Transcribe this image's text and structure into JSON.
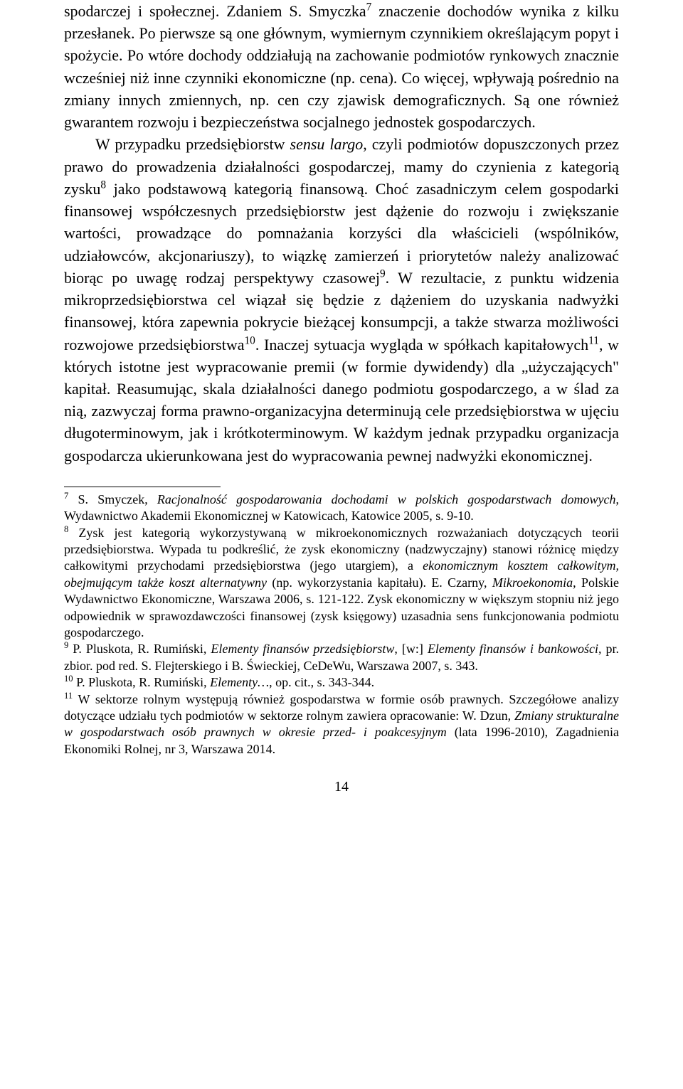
{
  "body": {
    "p1_a": "spodarczej i społecznej. Zdaniem S. Smyczka",
    "sup7": "7",
    "p1_b": " znaczenie dochodów wynika z kilku przesłanek. Po pierwsze są one głównym, wymiernym czynnikiem określającym popyt i spożycie. Po wtóre dochody oddziałują na zachowanie podmiotów rynkowych znacznie wcześniej niż inne czynniki ekonomiczne (np. cena). Co więcej, wpływają pośrednio na zmiany innych zmiennych, np. cen czy zjawisk demograficznych. Są one również gwarantem rozwoju i bezpieczeństwa socjalnego jednostek gospodarczych.",
    "p2_a": "W przypadku przedsiębiorstw ",
    "p2_italic": "sensu largo",
    "p2_b": ", czyli podmiotów dopuszczonych przez prawo do prowadzenia działalności gospodarczej, mamy do czynienia z kategorią zysku",
    "sup8": "8",
    "p2_c": " jako podstawową kategorią finansową. Choć zasadniczym celem gospodarki finansowej współczesnych przedsiębiorstw jest dążenie do rozwoju i zwiększanie wartości, prowadzące do pomnażania korzyści dla właścicieli (wspólników, udziałowców, akcjonariuszy), to wiązkę zamierzeń i priorytetów należy analizować biorąc po uwagę rodzaj perspektywy czasowej",
    "sup9": "9",
    "p2_d": ". W rezultacie, z punktu widzenia mikroprzedsiębiorstwa cel wiązał się będzie z dążeniem do uzyskania nadwyżki finansowej, która zapewnia pokrycie bieżącej konsumpcji, a także stwarza możliwości rozwojowe przedsiębiorstwa",
    "sup10": "10",
    "p2_e": ". Inaczej sytuacja wygląda w spółkach kapitałowych",
    "sup11": "11",
    "p2_f": ", w których istotne jest wypracowanie premii (w formie dywidendy) dla „użyczających\" kapitał. Reasumując, skala działalności danego podmiotu gospodarczego, a w ślad za nią, zazwyczaj forma prawno-organizacyjna determinują cele przedsiębiorstwa w ujęciu długoterminowym, jak i krótkoterminowym. W każdym jednak przypadku organizacja gospodarcza ukierunkowana jest do wypracowania pewnej nadwyżki ekonomicznej."
  },
  "footnotes": {
    "fn7_sup": "7",
    "fn7_a": " S. Smyczek, ",
    "fn7_italic": "Racjonalność gospodarowania dochodami w polskich gospodarstwach domowych",
    "fn7_b": ", Wydawnictwo Akademii Ekonomicznej w Katowicach, Katowice 2005, s. 9-10.",
    "fn8_sup": "8",
    "fn8_a": " Zysk jest kategorią wykorzystywaną w mikroekonomicznych rozważaniach dotyczących teorii przedsiębiorstwa. Wypada tu podkreślić, że zysk ekonomiczny (nadzwyczajny) stanowi różnicę między całkowitymi przychodami przedsiębiorstwa (jego utargiem), a ",
    "fn8_italic1": "ekonomicznym kosztem całkowitym, obejmującym także koszt alternatywny",
    "fn8_b": " (np. wykorzystania kapitału). E. Czarny, ",
    "fn8_italic2": "Mikroekonomia",
    "fn8_c": ", Polskie Wydawnictwo Ekonomiczne, Warszawa 2006, s. 121-122. Zysk ekonomiczny w większym stopniu niż jego odpowiednik w sprawozdawczości finansowej (zysk księgowy) uzasadnia sens funkcjonowania podmiotu gospodarczego.",
    "fn9_sup": "9",
    "fn9_a": " P. Pluskota, R. Rumiński, ",
    "fn9_italic1": "Elementy finansów przedsiębiorstw",
    "fn9_b": ", [w:] ",
    "fn9_italic2": "Elementy finansów i bankowości",
    "fn9_c": ", pr. zbior. pod red. S. Flejterskiego i B. Świeckiej, CeDeWu, Warszawa 2007, s. 343.",
    "fn10_sup": "10",
    "fn10_a": " P. Pluskota, R. Rumiński, ",
    "fn10_italic": "Elementy…",
    "fn10_b": ", op. cit., s. 343-344.",
    "fn11_sup": "11",
    "fn11_a": " W sektorze rolnym występują również gospodarstwa w formie osób prawnych. Szczegółowe analizy dotyczące udziału tych podmiotów w sektorze rolnym zawiera opracowanie: W. Dzun, ",
    "fn11_italic": "Zmiany strukturalne w gospodarstwach osób prawnych w okresie przed- i poakcesyjnym",
    "fn11_b": " (lata 1996-2010), Zagadnienia Ekonomiki Rolnej, nr 3, Warszawa 2014."
  },
  "page_number": "14"
}
